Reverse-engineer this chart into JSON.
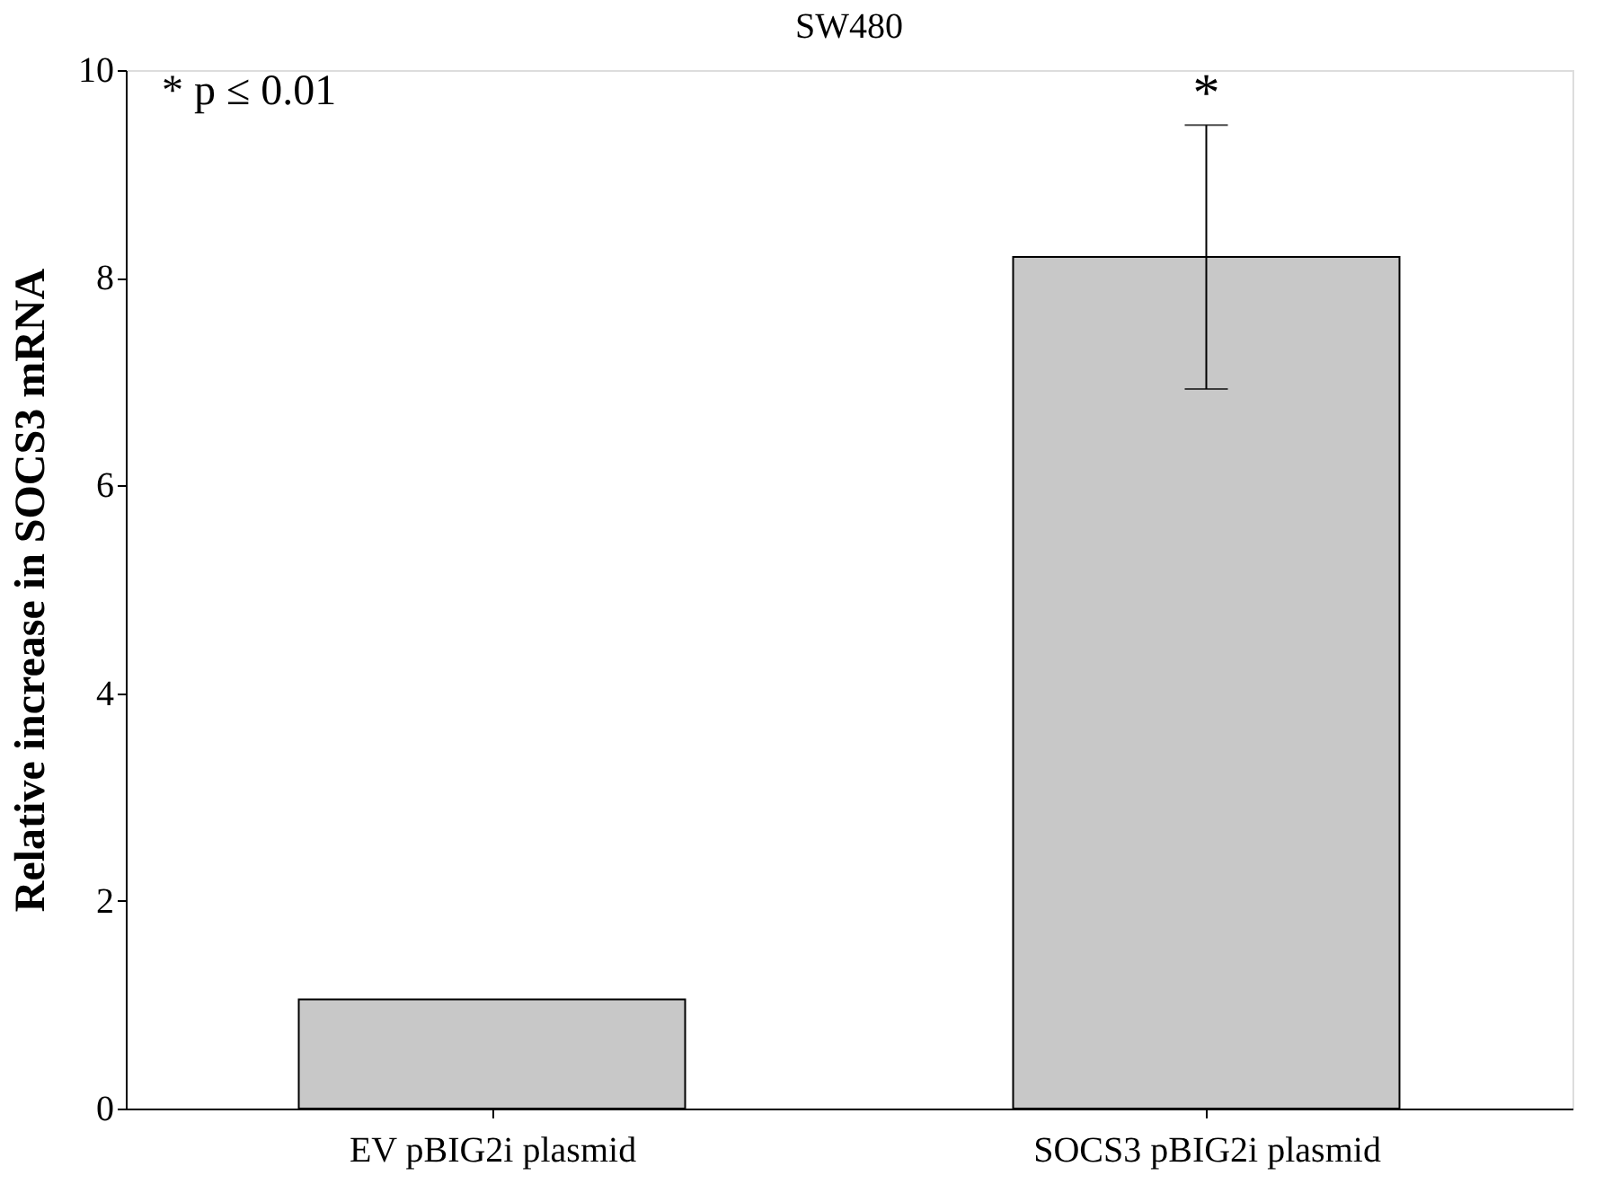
{
  "chart_data": {
    "type": "bar",
    "title": "SW480",
    "ylabel": "Relative increase in SOCS3 mRNA",
    "categories": [
      "EV pBIG2i plasmid",
      "SOCS3 pBIG2i plasmid"
    ],
    "values": [
      1.05,
      8.2
    ],
    "errors": [
      null,
      1.27
    ],
    "color": "#c8c8c8",
    "ylim": [
      0,
      10
    ],
    "yticks": [
      0,
      2,
      4,
      6,
      8,
      10
    ],
    "grid": false,
    "annotations": [
      "* p ≤ 0.01",
      "*"
    ]
  }
}
